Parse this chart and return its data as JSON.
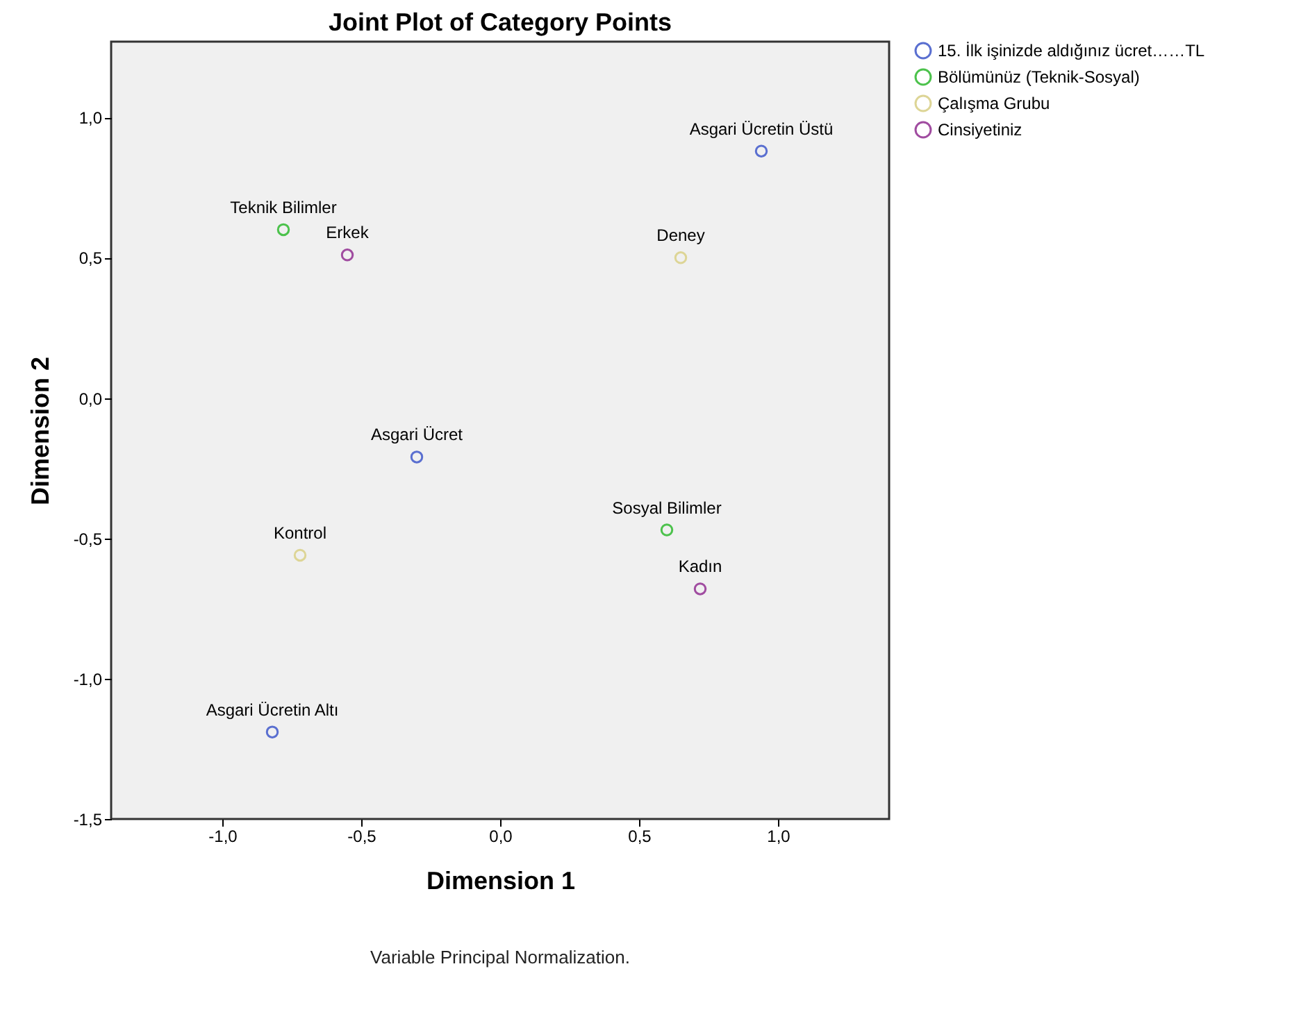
{
  "chart_data": {
    "type": "scatter",
    "title": "Joint Plot of Category Points",
    "xlabel": "Dimension 1",
    "ylabel": "Dimension 2",
    "xlim": [
      -1.4,
      1.4
    ],
    "ylim": [
      -1.5,
      1.27
    ],
    "xticks": [
      {
        "value": -1,
        "label": "-1,0"
      },
      {
        "value": -0.5,
        "label": "-0,5"
      },
      {
        "value": 0,
        "label": "0,0"
      },
      {
        "value": 0.5,
        "label": "0,5"
      },
      {
        "value": 1,
        "label": "1,0"
      }
    ],
    "yticks": [
      {
        "value": -1.5,
        "label": "-1,5"
      },
      {
        "value": -1,
        "label": "-1,0"
      },
      {
        "value": -0.5,
        "label": "-0,5"
      },
      {
        "value": 0,
        "label": "0,0"
      },
      {
        "value": 0.5,
        "label": "0,5"
      },
      {
        "value": 1,
        "label": "1,0"
      }
    ],
    "marker": "circle",
    "grid": false,
    "legend": "top right",
    "series": [
      {
        "name": "15. İlk işinizde aldığınız ücret……TL",
        "color": "#5a6fd0",
        "x": [
          0.94,
          -0.3,
          -0.82
        ],
        "values": [
          0.88,
          -0.21,
          -1.19
        ]
      },
      {
        "name": "Bölümünüz (Teknik-Sosyal)",
        "color": "#4cc24c",
        "x": [
          -0.78,
          0.6
        ],
        "values": [
          0.6,
          -0.47
        ]
      },
      {
        "name": "Çalışma Grubu",
        "color": "#ddd596",
        "x": [
          0.65,
          -0.72
        ],
        "values": [
          0.5,
          -0.56
        ]
      },
      {
        "name": "Cinsiyetiniz",
        "color": "#a04ca0",
        "x": [
          -0.55,
          0.72
        ],
        "values": [
          0.51,
          -0.68
        ]
      }
    ],
    "annotations": [
      {
        "text": "Asgari Ücretin Üstü",
        "x": 0.94,
        "y": 0.88
      },
      {
        "text": "Asgari Ücret",
        "x": -0.3,
        "y": -0.21
      },
      {
        "text": "Asgari Ücretin Altı",
        "x": -0.82,
        "y": -1.19
      },
      {
        "text": "Teknik Bilimler",
        "x": -0.78,
        "y": 0.6
      },
      {
        "text": "Sosyal Bilimler",
        "x": 0.6,
        "y": -0.47
      },
      {
        "text": "Deney",
        "x": 0.65,
        "y": 0.5
      },
      {
        "text": "Kontrol",
        "x": -0.72,
        "y": -0.56
      },
      {
        "text": "Erkek",
        "x": -0.55,
        "y": 0.51
      },
      {
        "text": "Kadın",
        "x": 0.72,
        "y": -0.68
      },
      "Variable Principal Normalization."
    ]
  }
}
